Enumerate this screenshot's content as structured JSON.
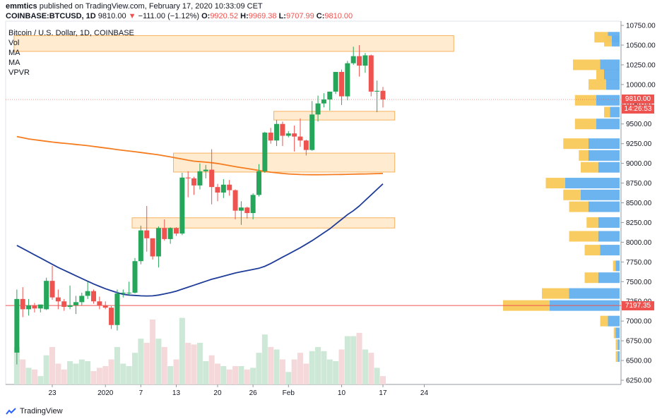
{
  "header": {
    "user": "emmtics",
    "published_text": "published on TradingView.com, February 17, 2020 10:33:09 CET"
  },
  "ohlc_bar": {
    "symbol": "COINBASE:BTCUSD, 1D",
    "last": "9810.00",
    "arrow": "▼",
    "change": "−111.00 (−1.12%)",
    "o_label": "O:",
    "o": "9920.52",
    "h_label": "H:",
    "h": "9969.38",
    "l_label": "L:",
    "l": "9707.99",
    "c_label": "C:",
    "c": "9810.00"
  },
  "legend": {
    "title": "Bitcoin / U.S. Dollar, 1D, COINBASE",
    "items": [
      "Vol",
      "MA",
      "MA",
      "VPVR"
    ]
  },
  "price_tags": {
    "last_price": "9810.00",
    "countdown": "14:26:53",
    "marked_level": "7197.35"
  },
  "footer": {
    "brand": "TradingView"
  },
  "colors": {
    "up": "#26a65b",
    "down": "#ef5350",
    "ma_fast": "#f57c1f",
    "ma_slow": "#1f3c99",
    "zone_fill": "#ffe6c4",
    "zone_border": "#f7b260",
    "vpvr_up": "#64b0ee",
    "vpvr_down": "#f9c958",
    "vol_up": "#cde8d6",
    "vol_down": "#f4d8da"
  },
  "chart_data": {
    "type": "candlestick",
    "y_axis": {
      "range": [
        6250,
        10750
      ],
      "ticks": [
        10750,
        10500,
        10250,
        10000,
        9750,
        9500,
        9250,
        9000,
        8750,
        8500,
        8250,
        8000,
        7750,
        7500,
        7250,
        7000,
        6750,
        6500,
        6250
      ],
      "tick_labels": [
        "10750.00",
        "10500.00",
        "10250.00",
        "10000.00",
        "9750.00",
        "9500.00",
        "9250.00",
        "9000.00",
        "8750.00",
        "8500.00",
        "8250.00",
        "8000.00",
        "7750.00",
        "7500.00",
        "7250.00",
        "7000.00",
        "6750.00",
        "6500.00",
        "6250.00"
      ]
    },
    "x_axis": {
      "start": "2019-12-17",
      "end": "2020-02-29",
      "ticks": [
        {
          "date": "2019-12-23",
          "label": "23"
        },
        {
          "date": "2020-01-01",
          "label": "2020"
        },
        {
          "date": "2020-01-07",
          "label": "7"
        },
        {
          "date": "2020-01-13",
          "label": "13"
        },
        {
          "date": "2020-01-20",
          "label": "20"
        },
        {
          "date": "2020-01-26",
          "label": "26"
        },
        {
          "date": "2020-02-01",
          "label": "Feb"
        },
        {
          "date": "2020-02-10",
          "label": "10"
        },
        {
          "date": "2020-02-17",
          "label": "17"
        },
        {
          "date": "2020-02-24",
          "label": "24"
        }
      ]
    },
    "candles": [
      {
        "date": "2019-12-17",
        "o": 6600,
        "h": 7400,
        "l": 6450,
        "c": 7280
      },
      {
        "date": "2019-12-18",
        "o": 7280,
        "h": 7430,
        "l": 7050,
        "c": 7150
      },
      {
        "date": "2019-12-19",
        "o": 7150,
        "h": 7280,
        "l": 7070,
        "c": 7200
      },
      {
        "date": "2019-12-20",
        "o": 7200,
        "h": 7230,
        "l": 7110,
        "c": 7160
      },
      {
        "date": "2019-12-21",
        "o": 7160,
        "h": 7200,
        "l": 7110,
        "c": 7210
      },
      {
        "date": "2019-12-22",
        "o": 7150,
        "h": 7550,
        "l": 7140,
        "c": 7510
      },
      {
        "date": "2019-12-23",
        "o": 7510,
        "h": 7700,
        "l": 7270,
        "c": 7300
      },
      {
        "date": "2019-12-24",
        "o": 7300,
        "h": 7400,
        "l": 7150,
        "c": 7250
      },
      {
        "date": "2019-12-25",
        "o": 7250,
        "h": 7280,
        "l": 7130,
        "c": 7180
      },
      {
        "date": "2019-12-26",
        "o": 7180,
        "h": 7450,
        "l": 7150,
        "c": 7200
      },
      {
        "date": "2019-12-27",
        "o": 7200,
        "h": 7320,
        "l": 7090,
        "c": 7240
      },
      {
        "date": "2019-12-28",
        "o": 7240,
        "h": 7360,
        "l": 7200,
        "c": 7320
      },
      {
        "date": "2019-12-29",
        "o": 7320,
        "h": 7500,
        "l": 7280,
        "c": 7380
      },
      {
        "date": "2019-12-30",
        "o": 7380,
        "h": 7400,
        "l": 7220,
        "c": 7250
      },
      {
        "date": "2019-12-31",
        "o": 7250,
        "h": 7310,
        "l": 7150,
        "c": 7200
      },
      {
        "date": "2020-01-01",
        "o": 7200,
        "h": 7250,
        "l": 7150,
        "c": 7170
      },
      {
        "date": "2020-01-02",
        "o": 7170,
        "h": 7190,
        "l": 6900,
        "c": 6950
      },
      {
        "date": "2020-01-03",
        "o": 6950,
        "h": 7400,
        "l": 6880,
        "c": 7350
      },
      {
        "date": "2020-01-04",
        "o": 7350,
        "h": 7400,
        "l": 7300,
        "c": 7360
      },
      {
        "date": "2020-01-05",
        "o": 7360,
        "h": 7500,
        "l": 7330,
        "c": 7360
      },
      {
        "date": "2020-01-06",
        "o": 7360,
        "h": 7800,
        "l": 7350,
        "c": 7760
      },
      {
        "date": "2020-01-07",
        "o": 7760,
        "h": 8210,
        "l": 7720,
        "c": 8150
      },
      {
        "date": "2020-01-08",
        "o": 8150,
        "h": 8460,
        "l": 7880,
        "c": 8050
      },
      {
        "date": "2020-01-09",
        "o": 8050,
        "h": 8050,
        "l": 7780,
        "c": 7820
      },
      {
        "date": "2020-01-10",
        "o": 7820,
        "h": 8200,
        "l": 7680,
        "c": 8180
      },
      {
        "date": "2020-01-11",
        "o": 8180,
        "h": 8290,
        "l": 8020,
        "c": 8040
      },
      {
        "date": "2020-01-12",
        "o": 8040,
        "h": 8190,
        "l": 7980,
        "c": 8180
      },
      {
        "date": "2020-01-13",
        "o": 8180,
        "h": 8190,
        "l": 8080,
        "c": 8110
      },
      {
        "date": "2020-01-14",
        "o": 8110,
        "h": 8880,
        "l": 8090,
        "c": 8820
      },
      {
        "date": "2020-01-15",
        "o": 8820,
        "h": 8900,
        "l": 8570,
        "c": 8810
      },
      {
        "date": "2020-01-16",
        "o": 8810,
        "h": 8830,
        "l": 8600,
        "c": 8720
      },
      {
        "date": "2020-01-17",
        "o": 8720,
        "h": 9000,
        "l": 8670,
        "c": 8900
      },
      {
        "date": "2020-01-18",
        "o": 8900,
        "h": 8980,
        "l": 8810,
        "c": 8920
      },
      {
        "date": "2020-01-19",
        "o": 8920,
        "h": 9180,
        "l": 8480,
        "c": 8700
      },
      {
        "date": "2020-01-20",
        "o": 8700,
        "h": 8740,
        "l": 8520,
        "c": 8630
      },
      {
        "date": "2020-01-21",
        "o": 8630,
        "h": 8800,
        "l": 8560,
        "c": 8730
      },
      {
        "date": "2020-01-22",
        "o": 8730,
        "h": 8790,
        "l": 8590,
        "c": 8660
      },
      {
        "date": "2020-01-23",
        "o": 8660,
        "h": 8670,
        "l": 8290,
        "c": 8400
      },
      {
        "date": "2020-01-24",
        "o": 8400,
        "h": 8520,
        "l": 8220,
        "c": 8440
      },
      {
        "date": "2020-01-25",
        "o": 8440,
        "h": 8450,
        "l": 8300,
        "c": 8370
      },
      {
        "date": "2020-01-26",
        "o": 8370,
        "h": 8620,
        "l": 8290,
        "c": 8600
      },
      {
        "date": "2020-01-27",
        "o": 8600,
        "h": 8990,
        "l": 8580,
        "c": 8900
      },
      {
        "date": "2020-01-28",
        "o": 8900,
        "h": 9400,
        "l": 8880,
        "c": 9390
      },
      {
        "date": "2020-01-29",
        "o": 9390,
        "h": 9450,
        "l": 9250,
        "c": 9290
      },
      {
        "date": "2020-01-30",
        "o": 9290,
        "h": 9550,
        "l": 9220,
        "c": 9500
      },
      {
        "date": "2020-01-31",
        "o": 9500,
        "h": 9530,
        "l": 9220,
        "c": 9350
      },
      {
        "date": "2020-02-01",
        "o": 9350,
        "h": 9410,
        "l": 9330,
        "c": 9380
      },
      {
        "date": "2020-02-02",
        "o": 9380,
        "h": 9480,
        "l": 9150,
        "c": 9340
      },
      {
        "date": "2020-02-03",
        "o": 9340,
        "h": 9570,
        "l": 9210,
        "c": 9290
      },
      {
        "date": "2020-02-04",
        "o": 9290,
        "h": 9300,
        "l": 9100,
        "c": 9170
      },
      {
        "date": "2020-02-05",
        "o": 9170,
        "h": 9790,
        "l": 9160,
        "c": 9620
      },
      {
        "date": "2020-02-06",
        "o": 9620,
        "h": 9860,
        "l": 9530,
        "c": 9760
      },
      {
        "date": "2020-02-07",
        "o": 9760,
        "h": 9890,
        "l": 9710,
        "c": 9810
      },
      {
        "date": "2020-02-08",
        "o": 9810,
        "h": 9900,
        "l": 9670,
        "c": 9910
      },
      {
        "date": "2020-02-09",
        "o": 9910,
        "h": 10150,
        "l": 9880,
        "c": 10160
      },
      {
        "date": "2020-02-10",
        "o": 10160,
        "h": 10190,
        "l": 9740,
        "c": 9850
      },
      {
        "date": "2020-02-11",
        "o": 9850,
        "h": 10300,
        "l": 9800,
        "c": 10270
      },
      {
        "date": "2020-02-12",
        "o": 10270,
        "h": 10480,
        "l": 10250,
        "c": 10360
      },
      {
        "date": "2020-02-13",
        "o": 10360,
        "h": 10500,
        "l": 10100,
        "c": 10240
      },
      {
        "date": "2020-02-14",
        "o": 10240,
        "h": 10400,
        "l": 10150,
        "c": 10370
      },
      {
        "date": "2020-02-15",
        "o": 10370,
        "h": 10380,
        "l": 9850,
        "c": 9910
      },
      {
        "date": "2020-02-16",
        "o": 9910,
        "h": 10050,
        "l": 9650,
        "c": 9920
      },
      {
        "date": "2020-02-17",
        "o": 9920.52,
        "h": 9969.38,
        "l": 9707.99,
        "c": 9810
      }
    ],
    "volume_relative": [
      0.45,
      0.3,
      0.2,
      0.18,
      0.1,
      0.35,
      0.45,
      0.25,
      0.18,
      0.28,
      0.25,
      0.3,
      0.28,
      0.16,
      0.2,
      0.22,
      0.3,
      0.45,
      0.25,
      0.22,
      0.38,
      0.55,
      0.5,
      0.78,
      0.55,
      0.45,
      0.22,
      0.3,
      0.8,
      0.5,
      0.48,
      0.5,
      0.28,
      0.35,
      0.25,
      0.22,
      0.18,
      0.22,
      0.22,
      0.18,
      0.2,
      0.38,
      0.6,
      0.45,
      0.42,
      0.3,
      0.15,
      0.3,
      0.38,
      0.25,
      0.4,
      0.45,
      0.4,
      0.3,
      0.28,
      0.42,
      0.58,
      0.58,
      0.62,
      0.42,
      0.38,
      0.2,
      0.1
    ],
    "ma_fast": {
      "from": "2019-12-17",
      "values": [
        9340,
        9325,
        9310,
        9300,
        9290,
        9280,
        9270,
        9262,
        9255,
        9248,
        9240,
        9233,
        9225,
        9215,
        9205,
        9195,
        9185,
        9175,
        9166,
        9157,
        9148,
        9138,
        9128,
        9118,
        9108,
        9095,
        9082,
        9068,
        9055,
        9040,
        9028,
        9022,
        9015,
        9008,
        8998,
        8985,
        8972,
        8958,
        8946,
        8935,
        8922,
        8910,
        8898,
        8888,
        8880,
        8872,
        8866,
        8862,
        8859,
        8857,
        8856,
        8856,
        8857,
        8858,
        8859,
        8860,
        8861,
        8863,
        8865,
        8866,
        8868,
        8870,
        8872
      ]
    },
    "ma_slow": {
      "from": "2019-12-17",
      "values": [
        7960,
        7920,
        7880,
        7840,
        7800,
        7760,
        7720,
        7680,
        7645,
        7610,
        7575,
        7540,
        7505,
        7470,
        7440,
        7410,
        7385,
        7360,
        7340,
        7330,
        7325,
        7320,
        7318,
        7320,
        7330,
        7345,
        7360,
        7380,
        7405,
        7430,
        7455,
        7480,
        7505,
        7530,
        7550,
        7570,
        7590,
        7610,
        7625,
        7640,
        7655,
        7670,
        7695,
        7730,
        7770,
        7810,
        7850,
        7890,
        7930,
        7975,
        8020,
        8070,
        8120,
        8170,
        8230,
        8290,
        8350,
        8400,
        8460,
        8530,
        8600,
        8670,
        8740
      ]
    },
    "zones": [
      {
        "from": "2019-12-17",
        "to": "2020-02-29",
        "low": 10420,
        "high": 10620
      },
      {
        "from": "2020-01-30",
        "to": "2020-02-19",
        "low": 9550,
        "high": 9660
      },
      {
        "from": "2020-01-13",
        "to": "2020-02-19",
        "low": 8890,
        "high": 9130
      },
      {
        "from": "2020-01-06",
        "to": "2020-02-19",
        "low": 8180,
        "high": 8310
      }
    ],
    "vpvr": [
      {
        "price": 10600,
        "up": 0.3,
        "down": 0.35
      },
      {
        "price": 10550,
        "up": 0.2,
        "down": 0.2
      },
      {
        "price": 10250,
        "up": 0.5,
        "down": 0.7
      },
      {
        "price": 10125,
        "up": 0.4,
        "down": 0.2
      },
      {
        "price": 10000,
        "up": 0.35,
        "down": 0.45
      },
      {
        "price": 9800,
        "up": 0.6,
        "down": 0.55
      },
      {
        "price": 9650,
        "up": 0.25,
        "down": 0.15
      },
      {
        "price": 9500,
        "up": 0.6,
        "down": 0.55
      },
      {
        "price": 9250,
        "up": 0.8,
        "down": 0.65
      },
      {
        "price": 9100,
        "up": 0.8,
        "down": 0.25
      },
      {
        "price": 8950,
        "up": 0.55,
        "down": 0.45
      },
      {
        "price": 8750,
        "up": 1.4,
        "down": 0.5
      },
      {
        "price": 8600,
        "up": 1.0,
        "down": 0.45
      },
      {
        "price": 8450,
        "up": 0.8,
        "down": 0.5
      },
      {
        "price": 8250,
        "up": 0.55,
        "down": 0.3
      },
      {
        "price": 8075,
        "up": 0.55,
        "down": 0.75
      },
      {
        "price": 7900,
        "up": 0.5,
        "down": 0.4
      },
      {
        "price": 7700,
        "up": 0.1,
        "down": 0.07
      },
      {
        "price": 7550,
        "up": 0.55,
        "down": 0.35
      },
      {
        "price": 7350,
        "up": 1.3,
        "down": 0.7
      },
      {
        "price": 7197,
        "up": 1.8,
        "down": 1.2
      },
      {
        "price": 7000,
        "up": 0.3,
        "down": 0.2
      },
      {
        "price": 6850,
        "up": 0.1,
        "down": 0.05
      },
      {
        "price": 6700,
        "up": 0.05,
        "down": 0.05
      },
      {
        "price": 6550,
        "up": 0.05,
        "down": 0.05
      }
    ],
    "last_price": 9810,
    "marked_level": 7197.35
  }
}
